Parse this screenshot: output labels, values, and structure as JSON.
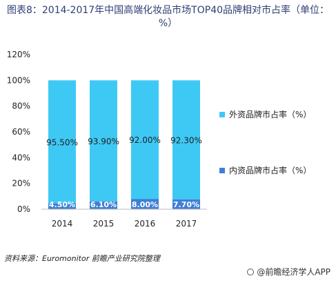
{
  "title": "图表8：2014-2017年中国高端化妆品市场TOP40品牌相对市占率（单位：%）",
  "source": "资料来源：Euromonitor 前瞻产业研究院整理",
  "brand": "@前瞻经济学人APP",
  "colors": {
    "foreign": "#3ec9f5",
    "domestic": "#3f7fd6",
    "axis": "#bbbbbb"
  },
  "chart_data": {
    "type": "bar",
    "stacked": true,
    "categories": [
      "2014",
      "2015",
      "2016",
      "2017"
    ],
    "series": [
      {
        "name": "内资品牌市占率（%）",
        "values": [
          4.5,
          6.1,
          8.0,
          7.7
        ],
        "labels": [
          "4.50%",
          "6.10%",
          "8.00%",
          "7.70%"
        ]
      },
      {
        "name": "外资品牌市占率（%）",
        "values": [
          95.5,
          93.9,
          92.0,
          92.3
        ],
        "labels": [
          "95.50%",
          "93.90%",
          "92.00%",
          "92.30%"
        ]
      }
    ],
    "yticks": [
      "0%",
      "20%",
      "40%",
      "60%",
      "80%",
      "100%",
      "120%"
    ],
    "ylim": [
      0,
      120
    ],
    "legend": "right"
  }
}
